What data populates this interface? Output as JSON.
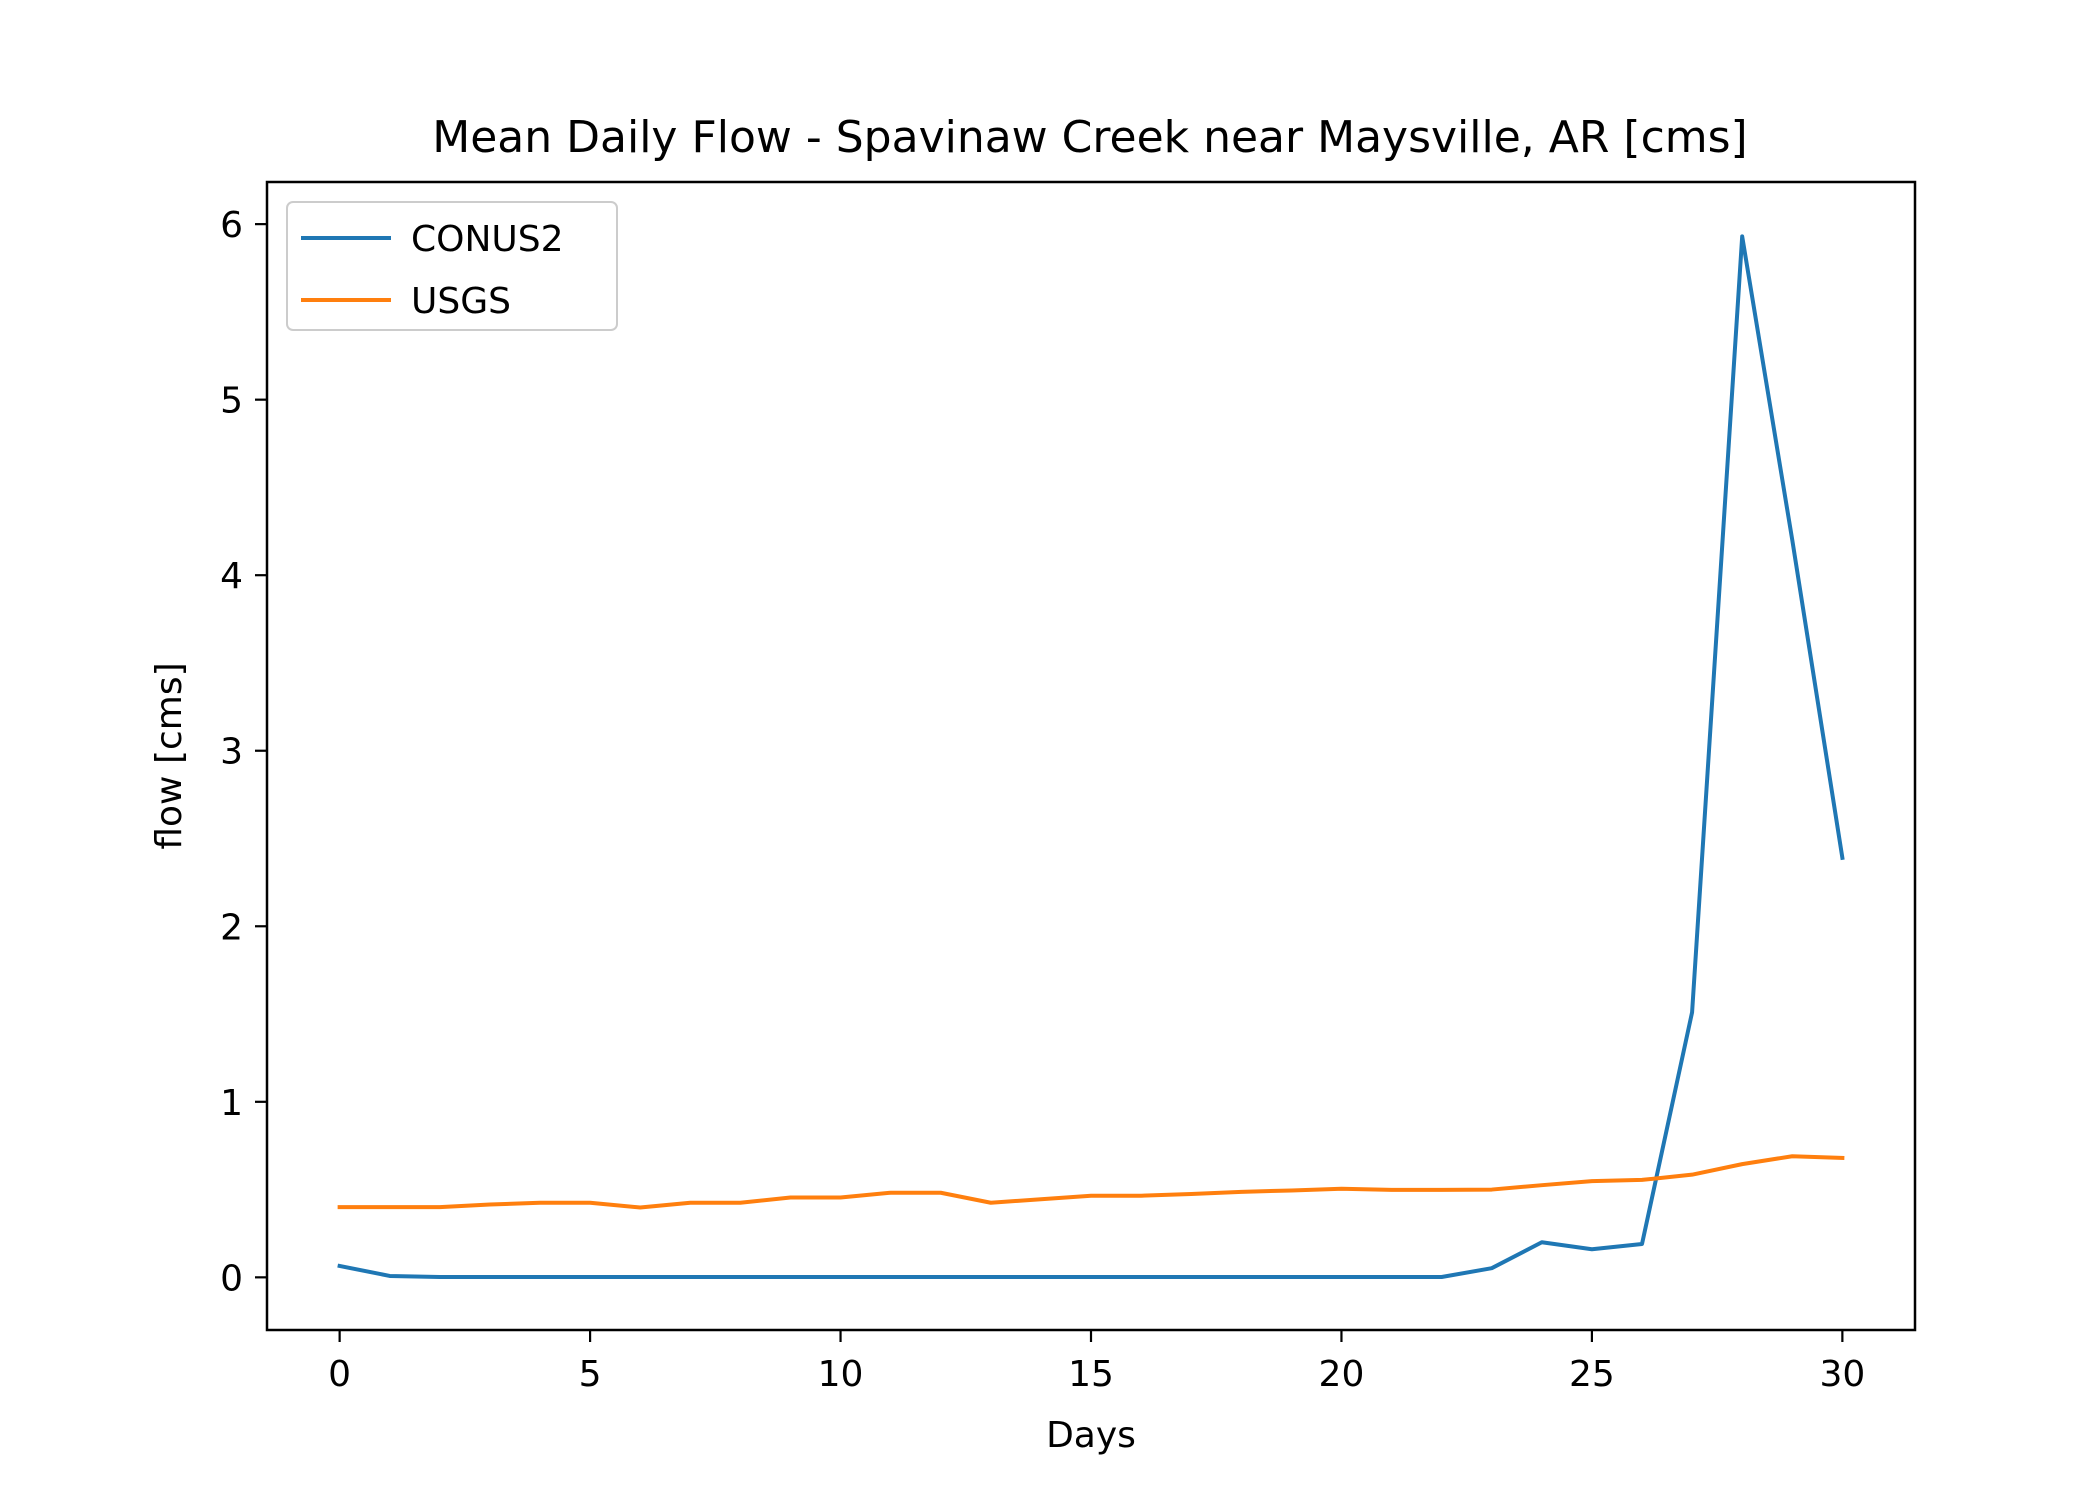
{
  "chart_data": {
    "type": "line",
    "title": "Mean Daily Flow - Spavinaw Creek near Maysville, AR [cms]",
    "xlabel": "Days",
    "ylabel": "flow [cms]",
    "xlim": [
      -1.45,
      31.45
    ],
    "ylim": [
      -0.3,
      6.24
    ],
    "xticks": [
      0,
      5,
      10,
      15,
      20,
      25,
      30
    ],
    "yticks": [
      0,
      1,
      2,
      3,
      4,
      5,
      6
    ],
    "grid": false,
    "legend_position": "top-left",
    "x": [
      0,
      1,
      2,
      3,
      4,
      5,
      6,
      7,
      8,
      9,
      10,
      11,
      12,
      13,
      14,
      15,
      16,
      17,
      18,
      19,
      20,
      21,
      22,
      23,
      24,
      25,
      26,
      27,
      28,
      29,
      30
    ],
    "series": [
      {
        "name": "CONUS2",
        "color": "#1f77b4",
        "values": [
          0.065,
          0.008,
          0.002,
          0.002,
          0.002,
          0.002,
          0.002,
          0.002,
          0.002,
          0.002,
          0.002,
          0.002,
          0.002,
          0.002,
          0.002,
          0.002,
          0.002,
          0.002,
          0.002,
          0.002,
          0.002,
          0.002,
          0.002,
          0.052,
          0.2,
          0.16,
          0.19,
          1.51,
          5.93,
          4.2,
          2.39
        ]
      },
      {
        "name": "USGS",
        "color": "#ff7f0e",
        "values": [
          0.4,
          0.4,
          0.4,
          0.415,
          0.425,
          0.425,
          0.398,
          0.425,
          0.425,
          0.455,
          0.455,
          0.482,
          0.482,
          0.425,
          0.445,
          0.465,
          0.465,
          0.475,
          0.487,
          0.495,
          0.505,
          0.498,
          0.498,
          0.5,
          0.525,
          0.548,
          0.555,
          0.585,
          0.645,
          0.69,
          0.68
        ]
      }
    ]
  }
}
